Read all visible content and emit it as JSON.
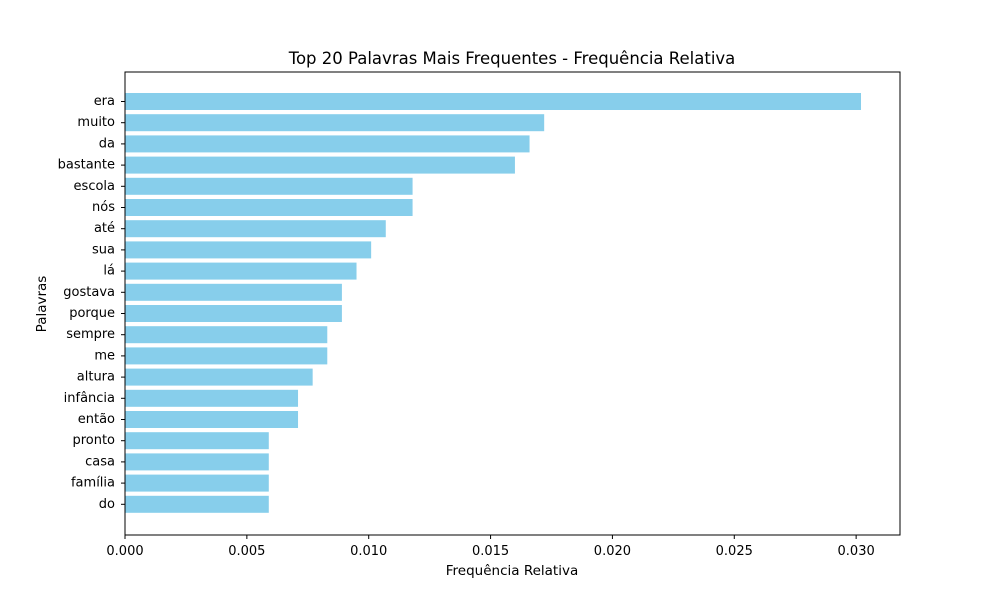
{
  "chart_data": {
    "type": "bar",
    "orientation": "horizontal",
    "title": "Top 20 Palavras Mais Frequentes - Frequência Relativa",
    "xlabel": "Frequência Relativa",
    "ylabel": "Palavras",
    "xlim": [
      0,
      0.0318
    ],
    "xticks": [
      "0.000",
      "0.005",
      "0.010",
      "0.015",
      "0.020",
      "0.025",
      "0.030"
    ],
    "xtick_values": [
      0,
      0.005,
      0.01,
      0.015,
      0.02,
      0.025,
      0.03
    ],
    "grid": false,
    "bar_color": "#87ceeb",
    "categories": [
      "era",
      "muito",
      "da",
      "bastante",
      "escola",
      "nós",
      "até",
      "sua",
      "lá",
      "gostava",
      "porque",
      "sempre",
      "me",
      "altura",
      "infância",
      "então",
      "pronto",
      "casa",
      "família",
      "do"
    ],
    "values": [
      0.0302,
      0.0172,
      0.0166,
      0.016,
      0.0118,
      0.0118,
      0.0107,
      0.0101,
      0.0095,
      0.0089,
      0.0089,
      0.0083,
      0.0083,
      0.0077,
      0.0071,
      0.0071,
      0.0059,
      0.0059,
      0.0059,
      0.0059
    ]
  }
}
